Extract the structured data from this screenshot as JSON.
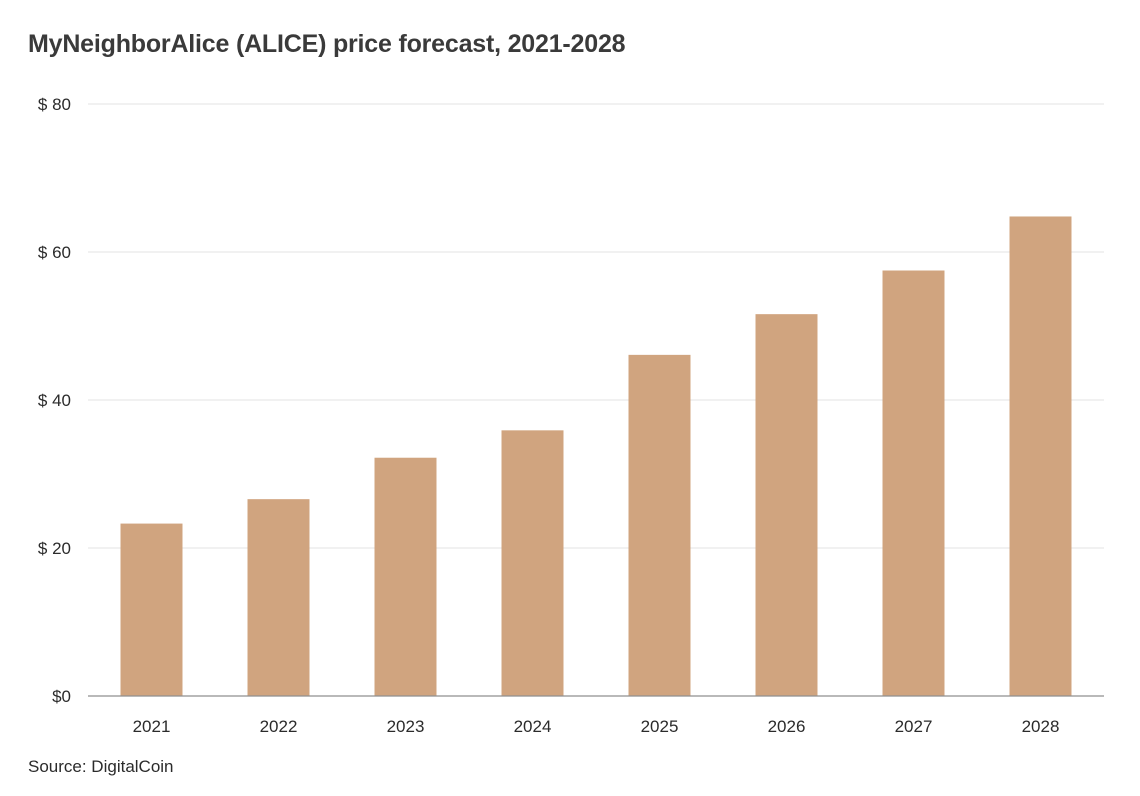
{
  "title": "MyNeighborAlice (ALICE) price forecast, 2021-2028",
  "source": "Source: DigitalCoin",
  "colors": {
    "bar": "#d0a47f",
    "grid": "#e3e3e3",
    "axis": "#8f8f8f"
  },
  "chart_data": {
    "type": "bar",
    "title": "MyNeighborAlice (ALICE) price forecast, 2021-2028",
    "xlabel": "",
    "ylabel": "",
    "categories": [
      "2021",
      "2022",
      "2023",
      "2024",
      "2025",
      "2026",
      "2027",
      "2028"
    ],
    "values": [
      23.3,
      26.6,
      32.2,
      35.9,
      46.1,
      51.6,
      57.5,
      64.8
    ],
    "ylim": [
      0,
      80
    ],
    "yticks": [
      0,
      20,
      40,
      60,
      80
    ],
    "ytick_labels": [
      "$0",
      "$ 20",
      "$ 40",
      "$ 60",
      "$ 80"
    ],
    "grid": true,
    "legend": "none"
  }
}
